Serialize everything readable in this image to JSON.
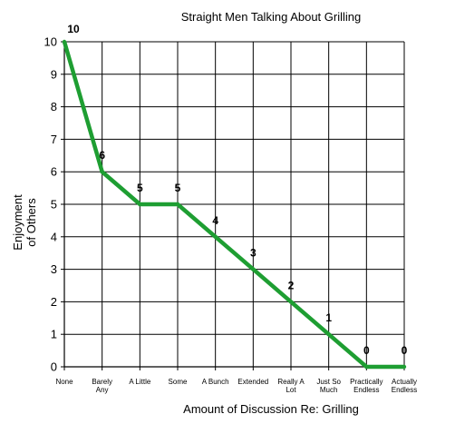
{
  "chart_data": {
    "type": "line",
    "title": "Straight Men Talking About Grilling",
    "xlabel": "Amount of Discussion Re: Grilling",
    "ylabel": [
      "Enjoyment",
      "of Others"
    ],
    "categories": [
      [
        "None"
      ],
      [
        "Barely",
        "Any"
      ],
      [
        "A Little"
      ],
      [
        "Some"
      ],
      [
        "A Bunch"
      ],
      [
        "Extended"
      ],
      [
        "Really A",
        "Lot"
      ],
      [
        "Just So",
        "Much"
      ],
      [
        "Practically",
        "Endless"
      ],
      [
        "Actually",
        "Endless"
      ]
    ],
    "values": [
      10,
      6,
      5,
      5,
      4,
      3,
      2,
      1,
      0,
      0
    ],
    "data_labels": [
      "10",
      "6",
      "5",
      "5",
      "4",
      "3",
      "2",
      "1",
      "0",
      "0"
    ],
    "ylim": [
      0,
      10
    ],
    "yticks": [
      0,
      1,
      2,
      3,
      4,
      5,
      6,
      7,
      8,
      9,
      10
    ],
    "grid": true,
    "line_color": "#1e9e32",
    "grid_color": "#000000"
  }
}
